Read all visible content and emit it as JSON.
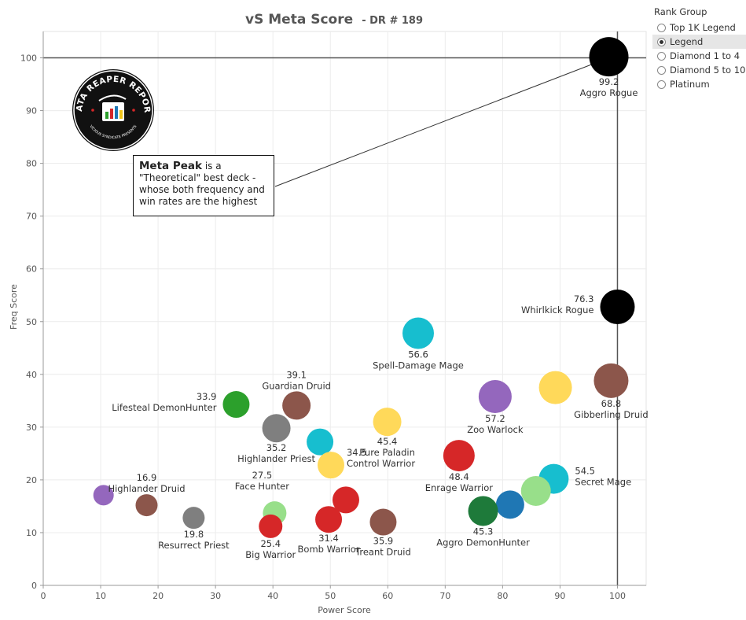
{
  "chart_data": {
    "type": "scatter",
    "title": "vS Meta Score",
    "subtitle": "- DR # 189",
    "xlabel": "Power Score",
    "ylabel": "Freq Score",
    "xlim": [
      0,
      105
    ],
    "ylim": [
      0,
      105
    ],
    "x_ticks": [
      0,
      10,
      20,
      30,
      40,
      50,
      60,
      70,
      80,
      90,
      100
    ],
    "y_ticks": [
      0,
      10,
      20,
      30,
      40,
      50,
      60,
      70,
      80,
      90,
      100
    ],
    "reference_lines": {
      "x": 100,
      "y": 100
    },
    "points": [
      {
        "x": 98.5,
        "y": 100.2,
        "color": "#000000",
        "size": 25,
        "name": "Aggro Rogue",
        "value": "99.2",
        "label_pos": "below"
      },
      {
        "x": 100.0,
        "y": 52.8,
        "color": "#000000",
        "size": 22,
        "name": "Whirlkick Rogue",
        "value": "76.3",
        "label_pos": "left"
      },
      {
        "x": 65.3,
        "y": 47.8,
        "color": "#17becf",
        "size": 20,
        "name": "Spell-Damage Mage",
        "value": "56.6",
        "label_pos": "below"
      },
      {
        "x": 98.9,
        "y": 38.8,
        "color": "#8c564b",
        "size": 22,
        "name": "Gibberling Druid",
        "value": "68.8",
        "label_pos": "below"
      },
      {
        "x": 89.2,
        "y": 37.5,
        "color": "#ffd95a",
        "size": 21,
        "name": "",
        "value": "",
        "label_pos": "none"
      },
      {
        "x": 78.7,
        "y": 35.8,
        "color": "#9467bd",
        "size": 21,
        "name": "Zoo Warlock",
        "value": "57.2",
        "label_pos": "below"
      },
      {
        "x": 33.6,
        "y": 34.3,
        "color": "#2ca02c",
        "size": 17,
        "name": "Lifesteal DemonHunter",
        "value": "33.9",
        "label_pos": "left"
      },
      {
        "x": 44.1,
        "y": 34.1,
        "color": "#8c564b",
        "size": 18,
        "name": "Guardian Druid",
        "value": "39.1",
        "label_pos": "above"
      },
      {
        "x": 40.6,
        "y": 29.8,
        "color": "#7f7f7f",
        "size": 18,
        "name": "Highlander Priest",
        "value": "35.2",
        "label_pos": "below"
      },
      {
        "x": 59.9,
        "y": 31.0,
        "color": "#ffd95a",
        "size": 18,
        "name": "Pure Paladin",
        "value": "45.4",
        "label_pos": "below"
      },
      {
        "x": 48.2,
        "y": 27.2,
        "color": "#17becf",
        "size": 17,
        "name": "",
        "value": "",
        "label_pos": "none"
      },
      {
        "x": 72.4,
        "y": 24.6,
        "color": "#d62728",
        "size": 20,
        "name": "Enrage Warrior",
        "value": "48.4",
        "label_pos": "below"
      },
      {
        "x": 50.1,
        "y": 22.8,
        "color": "#ffd95a",
        "size": 17,
        "name": "Control Warrior",
        "value": "34.5",
        "label_pos": "belowright"
      },
      {
        "x": 88.9,
        "y": 20.2,
        "color": "#17becf",
        "size": 19,
        "name": "Secret Mage",
        "value": "54.5",
        "label_pos": "right"
      },
      {
        "x": 85.8,
        "y": 17.9,
        "color": "#98df8a",
        "size": 19,
        "name": "",
        "value": "",
        "label_pos": "none"
      },
      {
        "x": 81.3,
        "y": 15.3,
        "color": "#1f77b4",
        "size": 18,
        "name": "",
        "value": "",
        "label_pos": "none"
      },
      {
        "x": 76.6,
        "y": 14.1,
        "color": "#1e7a3a",
        "size": 19,
        "name": "Aggro DemonHunter",
        "value": "45.3",
        "label_pos": "below"
      },
      {
        "x": 10.5,
        "y": 17.1,
        "color": "#9467bd",
        "size": 13,
        "name": "",
        "value": "",
        "label_pos": "none"
      },
      {
        "x": 18.0,
        "y": 15.2,
        "color": "#8c564b",
        "size": 14,
        "name": "Highlander Druid",
        "value": "16.9",
        "label_pos": "above"
      },
      {
        "x": 26.2,
        "y": 12.8,
        "color": "#7f7f7f",
        "size": 14,
        "name": "Resurrect Priest",
        "value": "19.8",
        "label_pos": "below"
      },
      {
        "x": 40.3,
        "y": 13.7,
        "color": "#98df8a",
        "size": 15,
        "name": "Face Hunter",
        "value": "27.5",
        "label_pos": "aboveleft"
      },
      {
        "x": 39.6,
        "y": 11.2,
        "color": "#d62728",
        "size": 15,
        "name": "Big Warrior",
        "value": "25.4",
        "label_pos": "below"
      },
      {
        "x": 52.7,
        "y": 16.2,
        "color": "#d62728",
        "size": 17,
        "name": "",
        "value": "",
        "label_pos": "none"
      },
      {
        "x": 49.7,
        "y": 12.5,
        "color": "#d62728",
        "size": 17,
        "name": "Bomb Warrior",
        "value": "31.4",
        "label_pos": "below"
      },
      {
        "x": 59.2,
        "y": 12.0,
        "color": "#8c564b",
        "size": 17,
        "name": "Treant Druid",
        "value": "35.9",
        "label_pos": "below"
      }
    ]
  },
  "legend": {
    "title": "Rank Group",
    "items": [
      "Top 1K Legend",
      "Legend",
      "Diamond 1 to 4",
      "Diamond 5 to 10",
      "Platinum"
    ],
    "selected_index": 1
  },
  "annotation": {
    "bold_text": "Meta Peak",
    "text_line1": " is a",
    "text_rest": "\"Theoretical\" best deck - whose both frequency and win rates are the highest"
  },
  "logo": {
    "top_text": "DATA REAPER REPORT",
    "bottom_text": "VICIOUS SYNDICATE PRESENTS"
  }
}
